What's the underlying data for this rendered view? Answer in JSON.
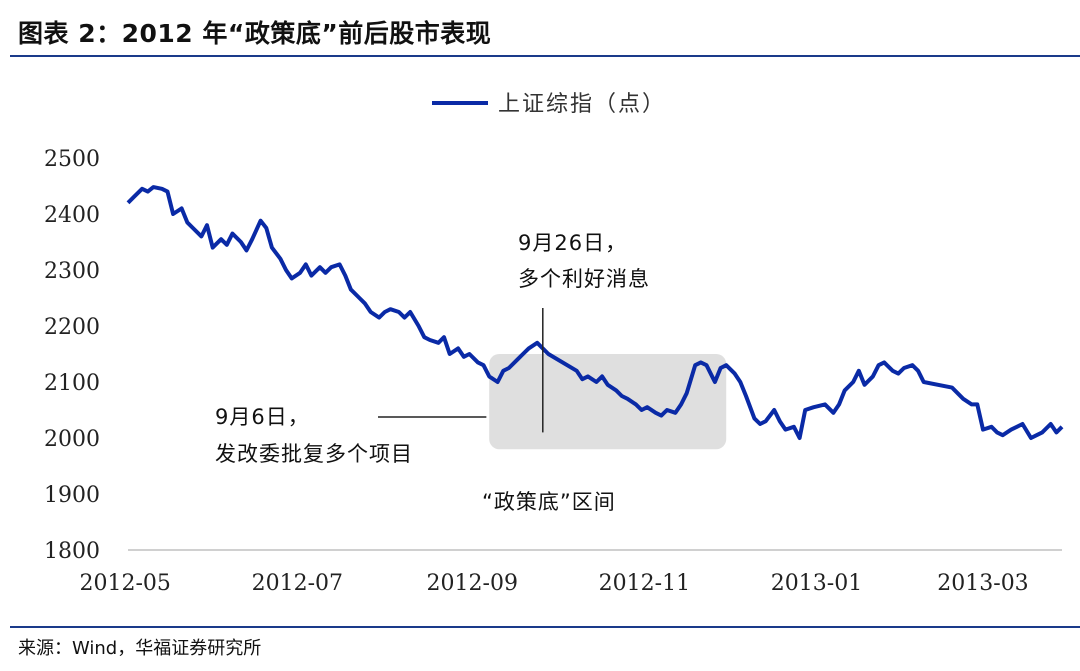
{
  "header": {
    "title": "图表 2：2012 年“政策底”前后股市表现"
  },
  "footer": {
    "source": "来源：Wind，华福证券研究所"
  },
  "colors": {
    "series": "#0a2aa6",
    "shade": "#d9d9d9",
    "rule": "#1a3a8a"
  },
  "chart_data": {
    "type": "line",
    "title": "",
    "xlabel": "",
    "ylabel": "",
    "ylim": [
      1800,
      2500
    ],
    "yticks": [
      1800,
      1900,
      2000,
      2100,
      2200,
      2300,
      2400,
      2500
    ],
    "xlim": [
      "2012-05-02",
      "2013-03-29"
    ],
    "xticks": [
      "2012-05",
      "2012-07",
      "2012-09",
      "2012-11",
      "2013-01",
      "2013-03"
    ],
    "legend": {
      "position": "top-center",
      "entries": [
        "上证综指（点）"
      ]
    },
    "grid": false,
    "series": [
      {
        "name": "上证综指（点）",
        "points": [
          [
            "2012-05-02",
            2420
          ],
          [
            "2012-05-04",
            2430
          ],
          [
            "2012-05-07",
            2445
          ],
          [
            "2012-05-09",
            2440
          ],
          [
            "2012-05-11",
            2448
          ],
          [
            "2012-05-14",
            2445
          ],
          [
            "2012-05-16",
            2440
          ],
          [
            "2012-05-18",
            2400
          ],
          [
            "2012-05-21",
            2410
          ],
          [
            "2012-05-23",
            2385
          ],
          [
            "2012-05-25",
            2375
          ],
          [
            "2012-05-28",
            2360
          ],
          [
            "2012-05-30",
            2380
          ],
          [
            "2012-06-01",
            2340
          ],
          [
            "2012-06-04",
            2355
          ],
          [
            "2012-06-06",
            2345
          ],
          [
            "2012-06-08",
            2365
          ],
          [
            "2012-06-11",
            2350
          ],
          [
            "2012-06-13",
            2335
          ],
          [
            "2012-06-15",
            2355
          ],
          [
            "2012-06-18",
            2388
          ],
          [
            "2012-06-20",
            2375
          ],
          [
            "2012-06-22",
            2340
          ],
          [
            "2012-06-25",
            2320
          ],
          [
            "2012-06-27",
            2300
          ],
          [
            "2012-06-29",
            2285
          ],
          [
            "2012-07-02",
            2295
          ],
          [
            "2012-07-04",
            2310
          ],
          [
            "2012-07-06",
            2290
          ],
          [
            "2012-07-09",
            2305
          ],
          [
            "2012-07-11",
            2295
          ],
          [
            "2012-07-13",
            2305
          ],
          [
            "2012-07-16",
            2310
          ],
          [
            "2012-07-18",
            2290
          ],
          [
            "2012-07-20",
            2265
          ],
          [
            "2012-07-23",
            2250
          ],
          [
            "2012-07-25",
            2240
          ],
          [
            "2012-07-27",
            2225
          ],
          [
            "2012-07-30",
            2215
          ],
          [
            "2012-08-01",
            2225
          ],
          [
            "2012-08-03",
            2230
          ],
          [
            "2012-08-06",
            2225
          ],
          [
            "2012-08-08",
            2215
          ],
          [
            "2012-08-10",
            2225
          ],
          [
            "2012-08-13",
            2200
          ],
          [
            "2012-08-15",
            2180
          ],
          [
            "2012-08-17",
            2175
          ],
          [
            "2012-08-20",
            2170
          ],
          [
            "2012-08-22",
            2180
          ],
          [
            "2012-08-24",
            2150
          ],
          [
            "2012-08-27",
            2160
          ],
          [
            "2012-08-29",
            2145
          ],
          [
            "2012-08-31",
            2150
          ],
          [
            "2012-09-03",
            2135
          ],
          [
            "2012-09-05",
            2130
          ],
          [
            "2012-09-07",
            2110
          ],
          [
            "2012-09-10",
            2100
          ],
          [
            "2012-09-12",
            2120
          ],
          [
            "2012-09-14",
            2125
          ],
          [
            "2012-09-17",
            2140
          ],
          [
            "2012-09-19",
            2150
          ],
          [
            "2012-09-21",
            2160
          ],
          [
            "2012-09-24",
            2170
          ],
          [
            "2012-09-26",
            2160
          ],
          [
            "2012-09-28",
            2150
          ],
          [
            "2012-10-08",
            2120
          ],
          [
            "2012-10-10",
            2105
          ],
          [
            "2012-10-12",
            2110
          ],
          [
            "2012-10-15",
            2100
          ],
          [
            "2012-10-17",
            2110
          ],
          [
            "2012-10-19",
            2095
          ],
          [
            "2012-10-22",
            2085
          ],
          [
            "2012-10-24",
            2075
          ],
          [
            "2012-10-26",
            2070
          ],
          [
            "2012-10-29",
            2060
          ],
          [
            "2012-10-31",
            2050
          ],
          [
            "2012-11-02",
            2055
          ],
          [
            "2012-11-05",
            2045
          ],
          [
            "2012-11-07",
            2040
          ],
          [
            "2012-11-09",
            2050
          ],
          [
            "2012-11-12",
            2045
          ],
          [
            "2012-11-14",
            2060
          ],
          [
            "2012-11-16",
            2080
          ],
          [
            "2012-11-19",
            2130
          ],
          [
            "2012-11-21",
            2135
          ],
          [
            "2012-11-23",
            2130
          ],
          [
            "2012-11-26",
            2100
          ],
          [
            "2012-11-28",
            2125
          ],
          [
            "2012-11-30",
            2130
          ],
          [
            "2012-12-03",
            2115
          ],
          [
            "2012-12-05",
            2100
          ],
          [
            "2012-12-07",
            2075
          ],
          [
            "2012-12-10",
            2035
          ],
          [
            "2012-12-12",
            2025
          ],
          [
            "2012-12-14",
            2030
          ],
          [
            "2012-12-17",
            2050
          ],
          [
            "2012-12-19",
            2030
          ],
          [
            "2012-12-21",
            2015
          ],
          [
            "2012-12-24",
            2020
          ],
          [
            "2012-12-26",
            2000
          ],
          [
            "2012-12-28",
            2050
          ],
          [
            "2012-12-31",
            2055
          ],
          [
            "2013-01-04",
            2060
          ],
          [
            "2013-01-07",
            2045
          ],
          [
            "2013-01-09",
            2060
          ],
          [
            "2013-01-11",
            2085
          ],
          [
            "2013-01-14",
            2100
          ],
          [
            "2013-01-16",
            2120
          ],
          [
            "2013-01-18",
            2095
          ],
          [
            "2013-01-21",
            2110
          ],
          [
            "2013-01-23",
            2130
          ],
          [
            "2013-01-25",
            2135
          ],
          [
            "2013-01-28",
            2120
          ],
          [
            "2013-01-30",
            2115
          ],
          [
            "2013-02-01",
            2125
          ],
          [
            "2013-02-04",
            2130
          ],
          [
            "2013-02-06",
            2120
          ],
          [
            "2013-02-08",
            2100
          ],
          [
            "2013-02-18",
            2090
          ],
          [
            "2013-02-20",
            2080
          ],
          [
            "2013-02-22",
            2070
          ],
          [
            "2013-02-25",
            2060
          ],
          [
            "2013-02-27",
            2060
          ],
          [
            "2013-03-01",
            2015
          ],
          [
            "2013-03-04",
            2020
          ],
          [
            "2013-03-06",
            2010
          ],
          [
            "2013-03-08",
            2005
          ],
          [
            "2013-03-11",
            2015
          ],
          [
            "2013-03-13",
            2020
          ],
          [
            "2013-03-15",
            2025
          ],
          [
            "2013-03-18",
            2000
          ],
          [
            "2013-03-20",
            2005
          ],
          [
            "2013-03-22",
            2010
          ],
          [
            "2013-03-25",
            2025
          ],
          [
            "2013-03-27",
            2010
          ],
          [
            "2013-03-29",
            2020
          ]
        ]
      }
    ],
    "annotations": [
      {
        "text": [
          "9月6日，",
          "发改委批复多个项目"
        ],
        "x": "2012-09-06",
        "y": 2040
      },
      {
        "text": [
          "9月26日，",
          "多个利好消息"
        ],
        "x": "2012-09-26",
        "y": 2010
      },
      {
        "text": [
          "“政策底”区间"
        ],
        "x_range": [
          "2012-09-07",
          "2012-11-30"
        ],
        "y_range": [
          1980,
          2150
        ]
      }
    ]
  }
}
